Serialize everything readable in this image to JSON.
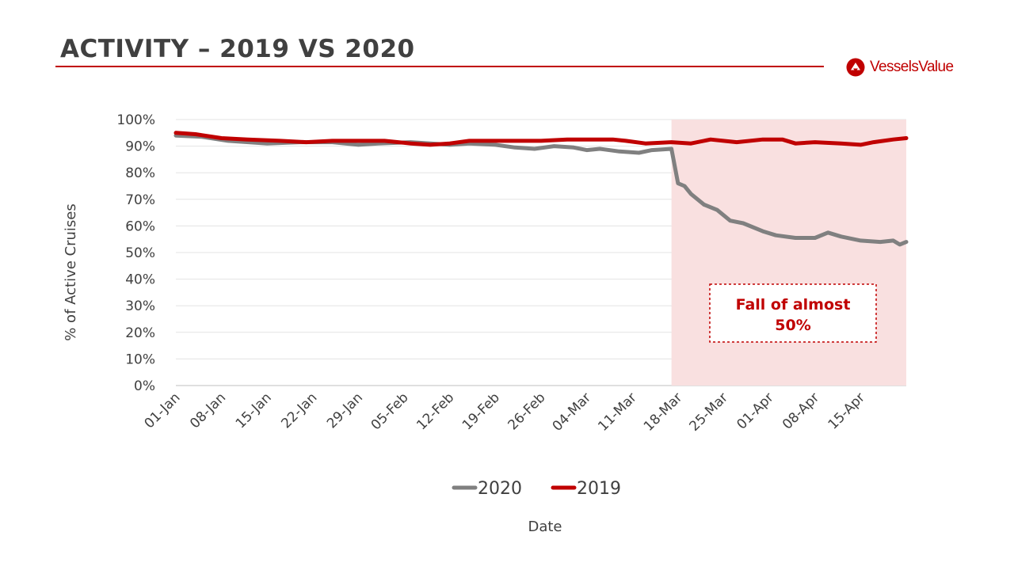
{
  "slide": {
    "title": "ACTIVITY – 2019 VS 2020",
    "logo_text": "VesselsValue",
    "accent_color": "#c00000"
  },
  "chart_data": {
    "type": "line",
    "title": "",
    "xlabel": "Date",
    "ylabel": "% of Active Cruises",
    "ylim": [
      0,
      100
    ],
    "y_ticks": [
      "0%",
      "10%",
      "20%",
      "30%",
      "40%",
      "50%",
      "60%",
      "70%",
      "80%",
      "90%",
      "100%"
    ],
    "x_ticks": [
      "01-Jan",
      "08-Jan",
      "15-Jan",
      "22-Jan",
      "29-Jan",
      "05-Feb",
      "12-Feb",
      "19-Feb",
      "26-Feb",
      "04-Mar",
      "11-Mar",
      "18-Mar",
      "25-Mar",
      "01-Apr",
      "08-Apr",
      "15-Apr"
    ],
    "grid": true,
    "legend_position": "bottom",
    "highlight_region": {
      "from": "17-Mar",
      "to": "22-Apr",
      "color": "#f9e0e0"
    },
    "annotation": {
      "lines": [
        "Fall of almost",
        "50%"
      ]
    },
    "series": [
      {
        "name": "2020",
        "color": "#808080",
        "points": [
          [
            "01-Jan",
            94
          ],
          [
            "05-Jan",
            93.5
          ],
          [
            "09-Jan",
            92
          ],
          [
            "15-Jan",
            91
          ],
          [
            "20-Jan",
            91.5
          ],
          [
            "25-Jan",
            91.5
          ],
          [
            "29-Jan",
            90.5
          ],
          [
            "01-Feb",
            91
          ],
          [
            "06-Feb",
            91.5
          ],
          [
            "12-Feb",
            90.5
          ],
          [
            "15-Feb",
            91
          ],
          [
            "19-Feb",
            90.5
          ],
          [
            "22-Feb",
            89.5
          ],
          [
            "25-Feb",
            89
          ],
          [
            "28-Feb",
            90
          ],
          [
            "02-Mar",
            89.5
          ],
          [
            "04-Mar",
            88.5
          ],
          [
            "06-Mar",
            89
          ],
          [
            "09-Mar",
            88
          ],
          [
            "12-Mar",
            87.5
          ],
          [
            "14-Mar",
            88.5
          ],
          [
            "17-Mar",
            89
          ],
          [
            "18-Mar",
            76
          ],
          [
            "19-Mar",
            75
          ],
          [
            "20-Mar",
            72
          ],
          [
            "22-Mar",
            68
          ],
          [
            "24-Mar",
            66
          ],
          [
            "26-Mar",
            62
          ],
          [
            "28-Mar",
            61
          ],
          [
            "31-Mar",
            58
          ],
          [
            "02-Apr",
            56.5
          ],
          [
            "05-Apr",
            55.5
          ],
          [
            "08-Apr",
            55.5
          ],
          [
            "10-Apr",
            57.5
          ],
          [
            "12-Apr",
            56
          ],
          [
            "15-Apr",
            54.5
          ],
          [
            "18-Apr",
            54
          ],
          [
            "20-Apr",
            54.5
          ],
          [
            "21-Apr",
            53
          ],
          [
            "22-Apr",
            54
          ]
        ]
      },
      {
        "name": "2019",
        "color": "#c00000",
        "points": [
          [
            "01-Jan",
            95
          ],
          [
            "04-Jan",
            94.5
          ],
          [
            "08-Jan",
            93
          ],
          [
            "12-Jan",
            92.5
          ],
          [
            "17-Jan",
            92
          ],
          [
            "21-Jan",
            91.5
          ],
          [
            "25-Jan",
            92
          ],
          [
            "29-Jan",
            92
          ],
          [
            "02-Feb",
            92
          ],
          [
            "06-Feb",
            91
          ],
          [
            "09-Feb",
            90.5
          ],
          [
            "12-Feb",
            91
          ],
          [
            "15-Feb",
            92
          ],
          [
            "19-Feb",
            92
          ],
          [
            "23-Feb",
            92
          ],
          [
            "26-Feb",
            92
          ],
          [
            "01-Mar",
            92.5
          ],
          [
            "04-Mar",
            92.5
          ],
          [
            "08-Mar",
            92.5
          ],
          [
            "10-Mar",
            92
          ],
          [
            "13-Mar",
            91
          ],
          [
            "17-Mar",
            91.5
          ],
          [
            "20-Mar",
            91
          ],
          [
            "23-Mar",
            92.5
          ],
          [
            "27-Mar",
            91.5
          ],
          [
            "31-Mar",
            92.5
          ],
          [
            "03-Apr",
            92.5
          ],
          [
            "05-Apr",
            91
          ],
          [
            "08-Apr",
            91.5
          ],
          [
            "12-Apr",
            91
          ],
          [
            "15-Apr",
            90.5
          ],
          [
            "17-Apr",
            91.5
          ],
          [
            "20-Apr",
            92.5
          ],
          [
            "22-Apr",
            93
          ]
        ]
      }
    ]
  }
}
